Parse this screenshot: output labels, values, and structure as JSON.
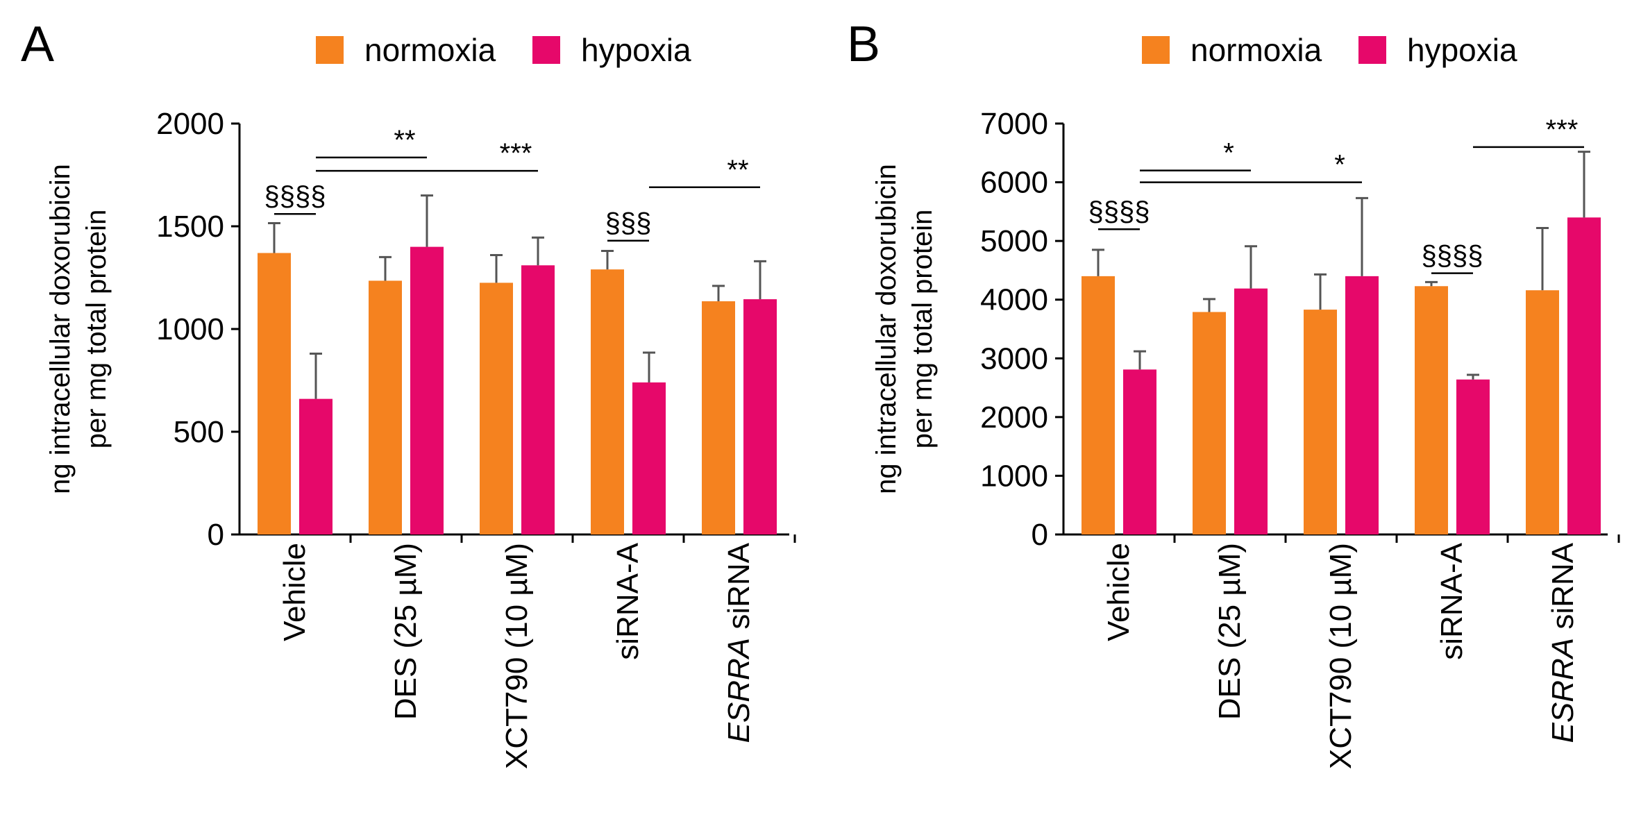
{
  "colors": {
    "normoxia": "#F5821F",
    "hypoxia": "#E6086A",
    "error": "#555555"
  },
  "chart_data": [
    {
      "panel": "A",
      "type": "bar",
      "title": "",
      "ylabel": [
        "ng intracellular doxorubicin",
        "per mg total protein"
      ],
      "ylim": [
        0,
        2000
      ],
      "yticks": [
        0,
        500,
        1000,
        1500,
        2000
      ],
      "categories": [
        "Vehicle",
        "DES (25 µM)",
        "XCT790 (10 µM)",
        "siRNA-A",
        "ESRRA siRNA"
      ],
      "category_italic_prefix": [
        "",
        "",
        "",
        "",
        "ESRRA"
      ],
      "legend": [
        "normoxia",
        "hypoxia"
      ],
      "series": [
        {
          "name": "normoxia",
          "values": [
            1370,
            1235,
            1225,
            1290,
            1135
          ],
          "errors": [
            145,
            115,
            135,
            90,
            75
          ]
        },
        {
          "name": "hypoxia",
          "values": [
            660,
            1400,
            1310,
            740,
            1145
          ],
          "errors": [
            220,
            250,
            135,
            145,
            185
          ]
        }
      ],
      "annotations": [
        {
          "text": "§§§§",
          "from": [
            0,
            0
          ],
          "to": [
            0,
            1
          ],
          "at": 1560
        },
        {
          "text": "**",
          "from": [
            0,
            1
          ],
          "to": [
            1,
            1
          ],
          "at": 1835
        },
        {
          "text": "***",
          "from": [
            0,
            1
          ],
          "to": [
            2,
            1
          ],
          "at": 1770
        },
        {
          "text": "§§§",
          "from": [
            3,
            0
          ],
          "to": [
            3,
            1
          ],
          "at": 1430
        },
        {
          "text": "**",
          "from": [
            3,
            1
          ],
          "to": [
            4,
            1
          ],
          "at": 1690
        }
      ]
    },
    {
      "panel": "B",
      "type": "bar",
      "title": "",
      "ylabel": [
        "ng intracellular doxorubicin",
        "per mg total protein"
      ],
      "ylim": [
        0,
        7000
      ],
      "yticks": [
        0,
        1000,
        2000,
        3000,
        4000,
        5000,
        6000,
        7000
      ],
      "categories": [
        "Vehicle",
        "DES (25 µM)",
        "XCT790 (10 µM)",
        "siRNA-A",
        "ESRRA siRNA"
      ],
      "category_italic_prefix": [
        "",
        "",
        "",
        "",
        "ESRRA"
      ],
      "legend": [
        "normoxia",
        "hypoxia"
      ],
      "series": [
        {
          "name": "normoxia",
          "values": [
            4400,
            3790,
            3830,
            4230,
            4160
          ],
          "errors": [
            450,
            220,
            600,
            70,
            1060
          ]
        },
        {
          "name": "hypoxia",
          "values": [
            2810,
            4190,
            4400,
            2640,
            5400
          ],
          "errors": [
            310,
            720,
            1330,
            80,
            1120
          ]
        }
      ],
      "annotations": [
        {
          "text": "§§§§",
          "from": [
            0,
            0
          ],
          "to": [
            0,
            1
          ],
          "at": 5200
        },
        {
          "text": "*",
          "from": [
            0,
            1
          ],
          "to": [
            1,
            1
          ],
          "at": 6200
        },
        {
          "text": "*",
          "from": [
            0,
            1
          ],
          "to": [
            2,
            1
          ],
          "at": 6000
        },
        {
          "text": "§§§§",
          "from": [
            3,
            0
          ],
          "to": [
            3,
            1
          ],
          "at": 4450
        },
        {
          "text": "***",
          "from": [
            3,
            1
          ],
          "to": [
            4,
            1
          ],
          "at": 6600
        }
      ]
    }
  ]
}
